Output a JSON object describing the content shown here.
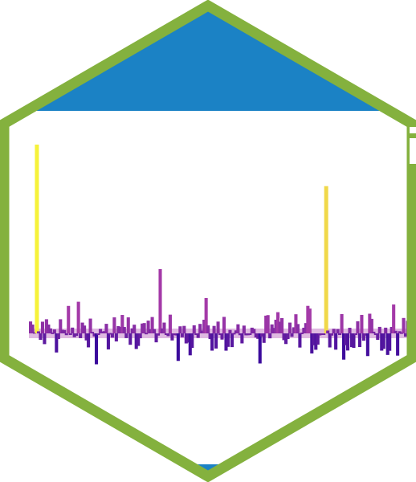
{
  "logo": {
    "name": "hexagon-sticker",
    "colors": {
      "border": "#84B13E",
      "banner": "#1B82C5",
      "background": "#FFFFFF",
      "bar_low": "#3B0A9C",
      "bar_mid": "#A43AA8",
      "bar_high": "#F0D84A",
      "bar_peak": "#F6F23A"
    },
    "signal": {
      "count": 190,
      "baseline": 0,
      "spikes": [
        {
          "index": 3,
          "value": 10
        },
        {
          "index": 148,
          "value": 7.8
        }
      ]
    }
  }
}
